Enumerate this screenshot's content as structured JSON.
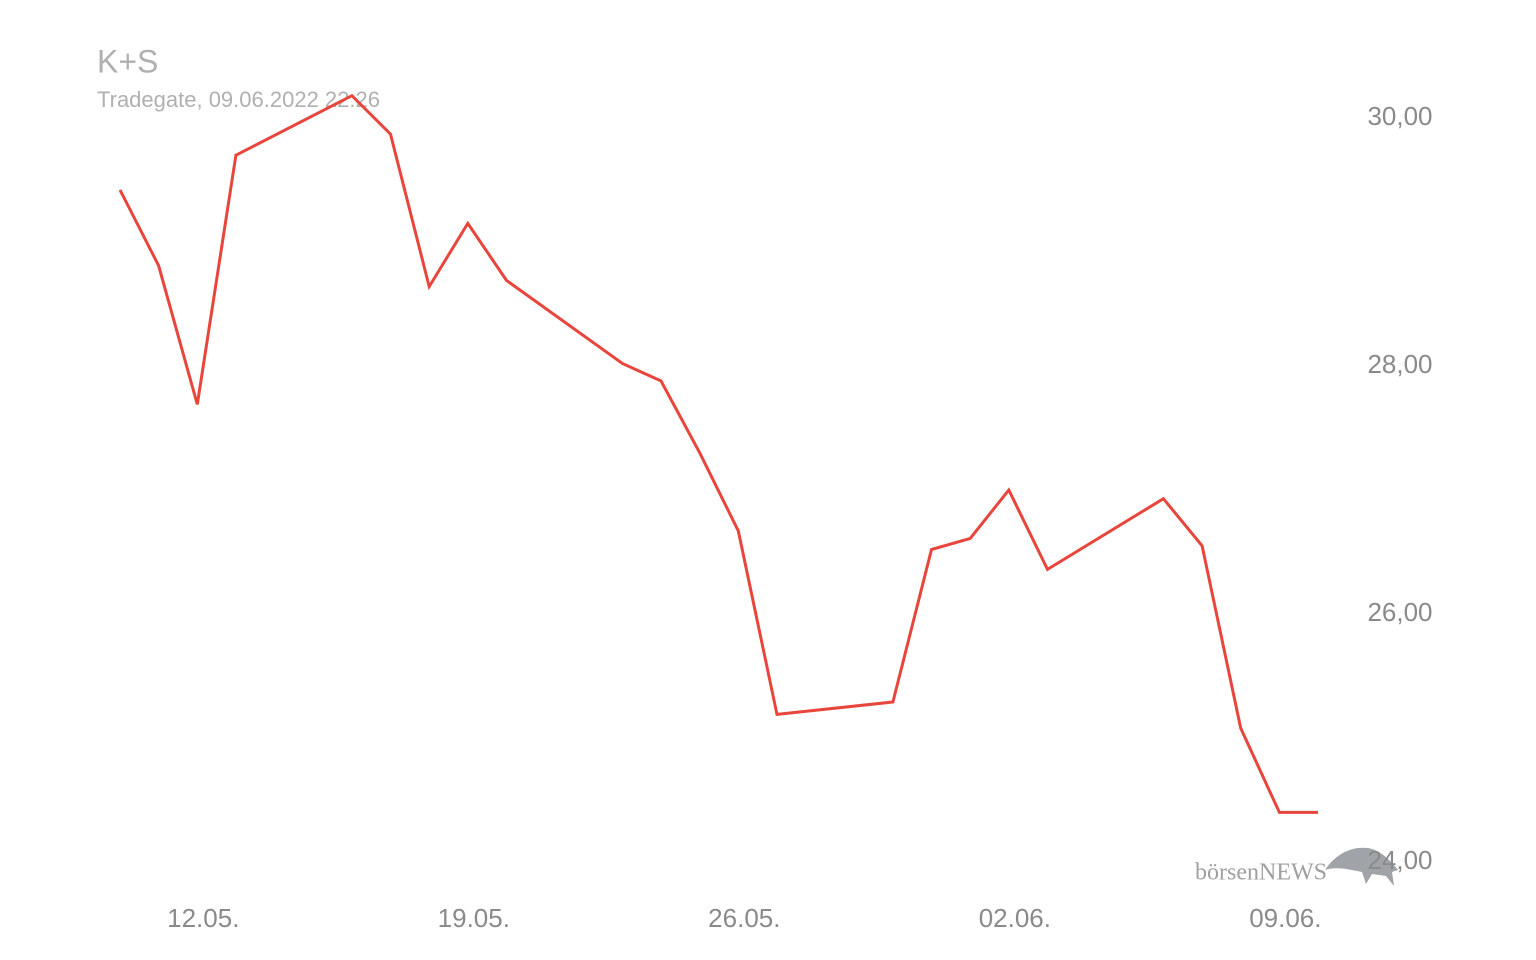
{
  "chart_data": {
    "type": "line",
    "title": "K+S",
    "subtitle": "Tradegate, 09.06.2022 22:26",
    "logo": "börsenNEWS",
    "x": [
      "10.05.",
      "11.05.",
      "12.05.",
      "13.05.",
      "16.05.",
      "17.05.",
      "18.05.",
      "19.05.",
      "20.05.",
      "23.05.",
      "24.05.",
      "25.05.",
      "26.05.",
      "27.05.",
      "30.05.",
      "31.05.",
      "01.06.",
      "02.06.",
      "03.06.",
      "06.06.",
      "07.06.",
      "08.06.",
      "09.06.",
      "10.06."
    ],
    "series": [
      {
        "name": "K+S",
        "color": "#e8463c",
        "values": [
          29.42,
          28.81,
          27.69,
          29.7,
          30.18,
          29.87,
          28.64,
          29.15,
          28.69,
          28.02,
          27.88,
          27.3,
          26.67,
          25.19,
          25.29,
          26.52,
          26.61,
          27.0,
          26.36,
          26.93,
          26.55,
          25.08,
          24.4,
          24.4
        ]
      }
    ],
    "xticks": [
      "12.05.",
      "19.05.",
      "26.05.",
      "02.06.",
      "09.06."
    ],
    "ylim": [
      24,
      30.5
    ],
    "yticks": [
      {
        "value": 24,
        "label": "24,00"
      },
      {
        "value": 26,
        "label": "26,00"
      },
      {
        "value": 28,
        "label": "28,00"
      },
      {
        "value": 30,
        "label": "30,00"
      }
    ],
    "grid": false
  }
}
